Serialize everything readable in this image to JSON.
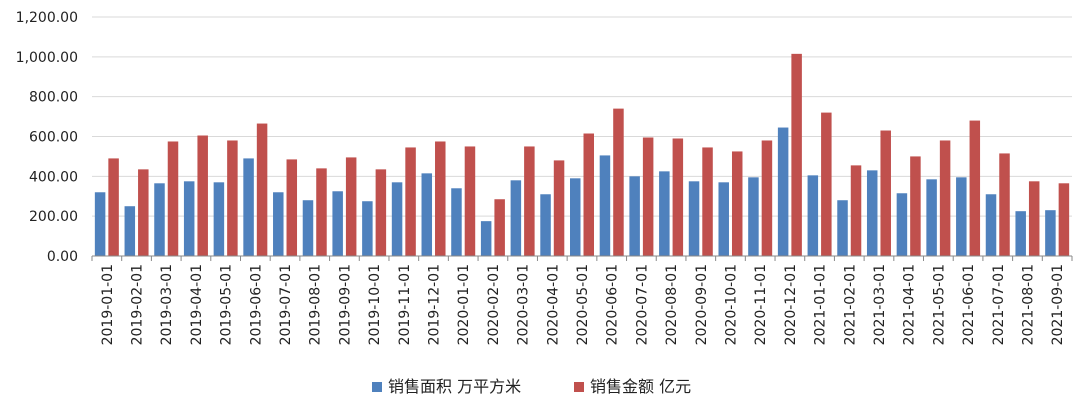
{
  "chart_data": {
    "type": "bar",
    "categories": [
      "2019-01-01",
      "2019-02-01",
      "2019-03-01",
      "2019-04-01",
      "2019-05-01",
      "2019-06-01",
      "2019-07-01",
      "2019-08-01",
      "2019-09-01",
      "2019-10-01",
      "2019-11-01",
      "2019-12-01",
      "2020-01-01",
      "2020-02-01",
      "2020-03-01",
      "2020-04-01",
      "2020-05-01",
      "2020-06-01",
      "2020-07-01",
      "2020-08-01",
      "2020-09-01",
      "2020-10-01",
      "2020-11-01",
      "2020-12-01",
      "2021-01-01",
      "2021-02-01",
      "2021-03-01",
      "2021-04-01",
      "2021-05-01",
      "2021-06-01",
      "2021-07-01",
      "2021-08-01",
      "2021-09-01"
    ],
    "series": [
      {
        "name": "销售面积 万平方米",
        "color": "#4F81BD",
        "values": [
          320,
          250,
          365,
          375,
          370,
          490,
          320,
          280,
          325,
          275,
          370,
          415,
          340,
          175,
          380,
          310,
          390,
          505,
          400,
          425,
          375,
          370,
          395,
          645,
          405,
          280,
          430,
          315,
          385,
          395,
          310,
          225,
          230
        ]
      },
      {
        "name": "销售金额 亿元",
        "color": "#C0504D",
        "values": [
          490,
          435,
          575,
          605,
          580,
          665,
          485,
          440,
          495,
          435,
          545,
          575,
          550,
          285,
          550,
          480,
          615,
          740,
          595,
          590,
          545,
          525,
          580,
          1015,
          720,
          455,
          630,
          500,
          580,
          680,
          515,
          375,
          365
        ]
      }
    ],
    "y_ticks": [
      "0.00",
      "200.00",
      "400.00",
      "600.00",
      "800.00",
      "1,000.00",
      "1,200.00"
    ],
    "ylim": [
      0,
      1200
    ],
    "grid": true,
    "legend_position": "bottom-center"
  }
}
